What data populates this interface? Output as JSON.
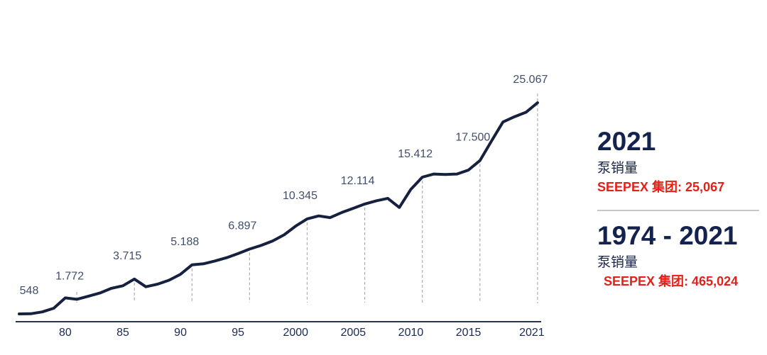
{
  "chart_data": {
    "type": "line",
    "title": "",
    "xlabel": "",
    "ylabel": "",
    "x_range": [
      1976,
      2021
    ],
    "grid": "dashed vertical drop lines at labeled years",
    "legend": "none",
    "x": [
      1976,
      1977,
      1978,
      1979,
      1980,
      1981,
      1982,
      1983,
      1984,
      1985,
      1986,
      1987,
      1988,
      1989,
      1990,
      1991,
      1992,
      1993,
      1994,
      1995,
      1996,
      1997,
      1998,
      1999,
      2000,
      2001,
      2002,
      2003,
      2004,
      2005,
      2006,
      2007,
      2008,
      2009,
      2010,
      2011,
      2012,
      2013,
      2014,
      2015,
      2016,
      2017,
      2018,
      2019,
      2020,
      2021
    ],
    "values": [
      548,
      560,
      700,
      1000,
      1900,
      1772,
      2050,
      2350,
      2800,
      3050,
      3715,
      2950,
      3200,
      3600,
      4200,
      5188,
      5300,
      5600,
      5950,
      6400,
      6897,
      7300,
      7800,
      8500,
      9500,
      10345,
      10700,
      10500,
      11100,
      11600,
      12114,
      12500,
      12800,
      11700,
      13900,
      15412,
      15800,
      15750,
      15800,
      16300,
      17500,
      20000,
      22500,
      23200,
      23800,
      25067
    ],
    "annotations": [
      {
        "year": 1976,
        "value": 548,
        "label": "548",
        "drop_line": false
      },
      {
        "year": 1981,
        "value": 1772,
        "label": "1.772",
        "drop_line": true
      },
      {
        "year": 1986,
        "value": 3715,
        "label": "3.715",
        "drop_line": true
      },
      {
        "year": 1991,
        "value": 5188,
        "label": "5.188",
        "drop_line": true
      },
      {
        "year": 1996,
        "value": 6897,
        "label": "6.897",
        "drop_line": true
      },
      {
        "year": 2001,
        "value": 10345,
        "label": "10.345",
        "drop_line": true
      },
      {
        "year": 2006,
        "value": 12114,
        "label": "12.114",
        "drop_line": true
      },
      {
        "year": 2011,
        "value": 15412,
        "label": "15.412",
        "drop_line": true
      },
      {
        "year": 2016,
        "value": 17500,
        "label": "17.500",
        "drop_line": true
      },
      {
        "year": 2021,
        "value": 25067,
        "label": "25.067",
        "drop_line": true
      }
    ],
    "x_ticks": [
      {
        "year": 1980,
        "label": "80"
      },
      {
        "year": 1985,
        "label": "85"
      },
      {
        "year": 1990,
        "label": "90"
      },
      {
        "year": 1995,
        "label": "95"
      },
      {
        "year": 2000,
        "label": "2000"
      },
      {
        "year": 2005,
        "label": "2005"
      },
      {
        "year": 2010,
        "label": "2010"
      },
      {
        "year": 2015,
        "label": "2015"
      },
      {
        "year": 2021,
        "label": "2021"
      }
    ],
    "colors": {
      "line": "#16203f",
      "axis": "#26334f",
      "tick_label": "#1c2950",
      "value_label": "#414e6b",
      "drop_line": "#aeaeae"
    }
  },
  "panel": {
    "current": {
      "title": "2021",
      "subtitle": "泵销量",
      "stat": "SEEPEX 集团: 25,067"
    },
    "cumulative": {
      "title": "1974 - 2021",
      "subtitle": "泵销量",
      "stat": "SEEPEX 集团: 465,024"
    },
    "colors": {
      "heading": "#14224e",
      "subtitle": "#1b2447",
      "stat": "#e32119",
      "divider": "#c6c6c6"
    }
  }
}
